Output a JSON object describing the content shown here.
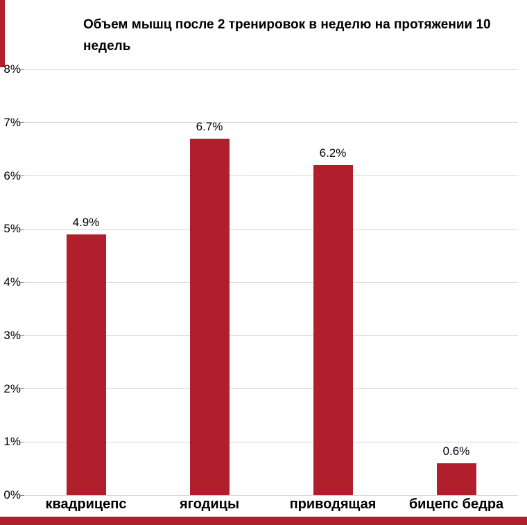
{
  "chart_data": {
    "type": "bar",
    "title": "Объем мышц после 2 тренировок в неделю на протяжении 10 недель",
    "categories": [
      "квадрицепс",
      "ягодицы",
      "приводящая",
      "бицепс бедра"
    ],
    "values": [
      4.9,
      6.7,
      6.2,
      0.6
    ],
    "value_labels": [
      "4.9%",
      "6.7%",
      "6.2%",
      "0.6%"
    ],
    "xlabel": "",
    "ylabel": "",
    "ylim": [
      0,
      8
    ],
    "yticks": [
      "0%",
      "1%",
      "2%",
      "3%",
      "4%",
      "5%",
      "6%",
      "7%",
      "8%"
    ],
    "grid": true,
    "legend": "none",
    "bar_color": "#b21f2c"
  },
  "colors": {
    "bar": "#b21f2c",
    "gridline": "#d9d9d9",
    "tick": "#8c8c8c",
    "text": "#000000",
    "background": "#ffffff"
  }
}
